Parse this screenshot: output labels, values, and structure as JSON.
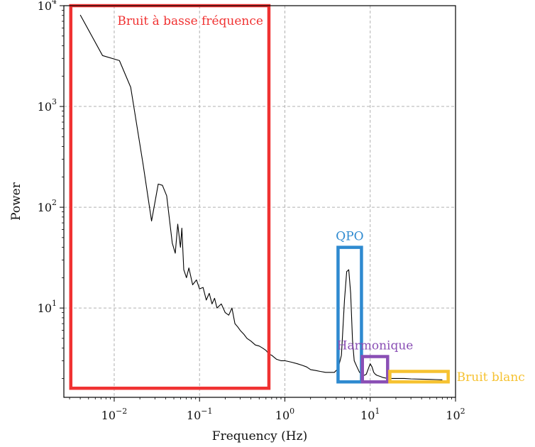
{
  "chart_data": {
    "type": "line",
    "title": "",
    "xlabel": "Frequency (Hz)",
    "ylabel": "Power",
    "xscale": "log",
    "yscale": "log",
    "xlim": [
      0.00257,
      100
    ],
    "ylim": [
      1.3,
      10000
    ],
    "grid": true,
    "x_ticks": [
      {
        "base": "10",
        "exp": "−2",
        "value": 0.01
      },
      {
        "base": "10",
        "exp": "−1",
        "value": 0.1
      },
      {
        "base": "10",
        "exp": "0",
        "value": 1
      },
      {
        "base": "10",
        "exp": "1",
        "value": 10
      },
      {
        "base": "10",
        "exp": "2",
        "value": 100
      }
    ],
    "y_ticks": [
      {
        "base": "10",
        "exp": "1",
        "value": 10
      },
      {
        "base": "10",
        "exp": "2",
        "value": 100
      },
      {
        "base": "10",
        "exp": "3",
        "value": 1000
      },
      {
        "base": "10",
        "exp": "4",
        "value": 10000
      }
    ],
    "series": [
      {
        "color": "#000000",
        "x": [
          0.004,
          0.0073,
          0.0115,
          0.0156,
          0.0219,
          0.0274,
          0.0328,
          0.0367,
          0.0412,
          0.0479,
          0.0519,
          0.0555,
          0.0597,
          0.0621,
          0.0653,
          0.0703,
          0.075,
          0.083,
          0.092,
          0.1,
          0.11,
          0.12,
          0.13,
          0.14,
          0.15,
          0.16,
          0.18,
          0.2,
          0.22,
          0.24,
          0.26,
          0.28,
          0.3,
          0.33,
          0.36,
          0.4,
          0.45,
          0.5,
          0.55,
          0.6,
          0.65,
          0.7,
          0.8,
          0.9,
          1.0,
          1.2,
          1.4,
          1.6,
          1.8,
          2.0,
          2.3,
          2.6,
          3.0,
          3.4,
          3.8,
          4.2,
          4.6,
          5.0,
          5.3,
          5.6,
          5.9,
          6.2,
          6.5,
          7.0,
          7.5,
          8.0,
          8.5,
          9.0,
          9.5,
          10.0,
          10.5,
          11.0,
          11.5,
          12.0,
          13.0,
          14.0,
          16.0,
          18.0,
          20.0,
          25.0,
          30.0,
          40.0,
          50.0,
          60.0,
          70.0
        ],
        "y": [
          8100,
          3200,
          2850,
          1550,
          260,
          73,
          170,
          165,
          130,
          44,
          35,
          68,
          40,
          62,
          24,
          20,
          25,
          17,
          19,
          15.5,
          16,
          12,
          14,
          11,
          12.5,
          10,
          11,
          9,
          8.5,
          10,
          7,
          6.5,
          6,
          5.5,
          5,
          4.7,
          4.3,
          4.2,
          4.0,
          3.8,
          3.5,
          3.4,
          3.1,
          3.0,
          3.0,
          2.9,
          2.8,
          2.7,
          2.6,
          2.45,
          2.4,
          2.35,
          2.3,
          2.3,
          2.3,
          2.5,
          3.4,
          12,
          23,
          24,
          14,
          4.8,
          3.0,
          2.6,
          2.3,
          2.2,
          2.15,
          2.2,
          2.5,
          2.8,
          2.6,
          2.3,
          2.2,
          2.15,
          2.1,
          2.05,
          2.0,
          2.0,
          2.0,
          2.0,
          1.98,
          1.97,
          1.96,
          1.95,
          1.94
        ]
      }
    ],
    "annotations": [
      {
        "label": "Bruit à basse fréquence",
        "color": "#f03232",
        "x": [
          0.0031,
          0.65
        ],
        "y": [
          1.6,
          10000
        ],
        "label_pos": "inside-top"
      },
      {
        "label": "QPO",
        "color": "#2e8ad0",
        "x": [
          4.2,
          7.9
        ],
        "y": [
          1.85,
          40
        ],
        "label_pos": "above"
      },
      {
        "label": "Harmonique",
        "color": "#8a4fb5",
        "x": [
          8.1,
          16
        ],
        "y": [
          1.85,
          3.3
        ],
        "label_pos": "above"
      },
      {
        "label": "Bruit blanc",
        "color": "#f6c231",
        "x": [
          17,
          82
        ],
        "y": [
          1.85,
          2.35
        ],
        "label_pos": "right"
      }
    ]
  }
}
